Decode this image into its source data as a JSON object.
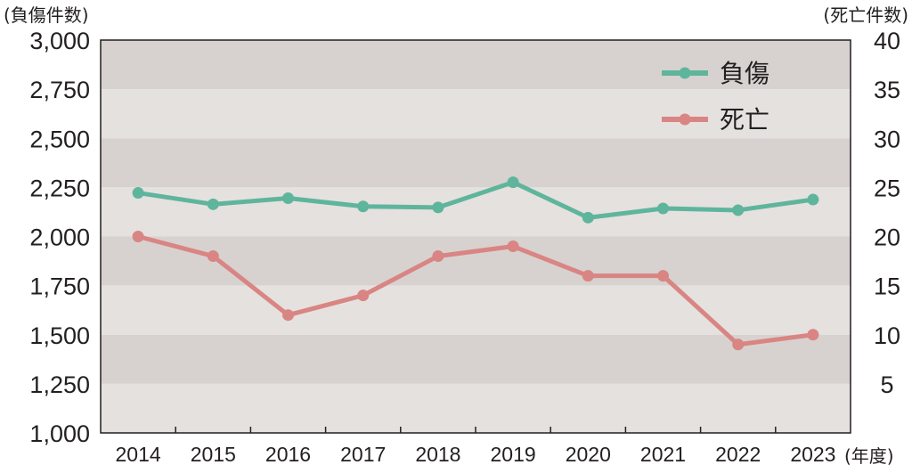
{
  "chart_data": {
    "type": "line",
    "categories": [
      "2014",
      "2015",
      "2016",
      "2017",
      "2018",
      "2019",
      "2020",
      "2021",
      "2022",
      "2023"
    ],
    "xlabel": "(年度)",
    "ylabel_left": "(負傷件数)",
    "ylabel_right": "(死亡件数)",
    "ylim_left": [
      1000,
      3000
    ],
    "ylim_right": [
      0,
      40
    ],
    "yticks_left": [
      "1,000",
      "1,250",
      "1,500",
      "1,750",
      "2,000",
      "2,250",
      "2,500",
      "2,750",
      "3,000"
    ],
    "yticks_right": [
      "5",
      "10",
      "15",
      "20",
      "25",
      "30",
      "35",
      "40"
    ],
    "grid": "alternating horizontal bands",
    "legend_position": "top-right",
    "series": [
      {
        "name": "負傷",
        "axis": "left",
        "color": "#5fb59c",
        "values": [
          2222,
          2164,
          2195,
          2153,
          2148,
          2276,
          2096,
          2143,
          2134,
          2188
        ]
      },
      {
        "name": "死亡",
        "axis": "right",
        "color": "#d98583",
        "values": [
          20,
          18,
          12,
          14,
          18,
          19,
          16,
          16,
          9,
          10
        ]
      }
    ]
  }
}
